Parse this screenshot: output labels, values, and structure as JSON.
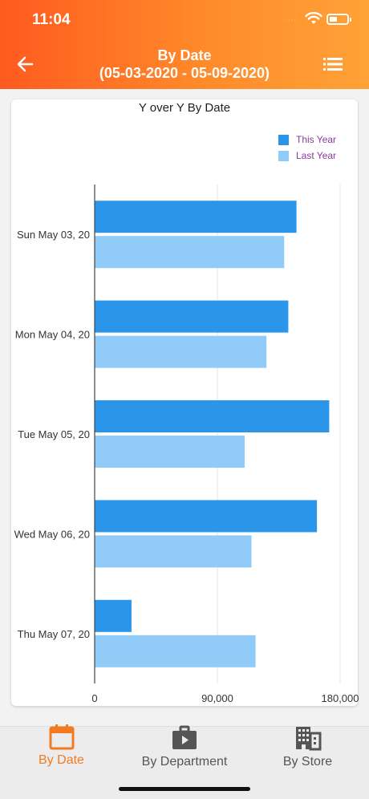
{
  "status_bar": {
    "time": "11:04",
    "signal": "····"
  },
  "header": {
    "title": "By Date",
    "date_range": "(05-03-2020 - 05-09-2020)",
    "back_icon": "arrow-left-icon",
    "menu_icon": "list-icon"
  },
  "chart_data": {
    "type": "bar",
    "orientation": "horizontal",
    "title": "Y over Y By Date",
    "categories": [
      "Sun May 03, 20",
      "Mon May 04, 20",
      "Tue May 05, 20",
      "Wed May 06, 20",
      "Thu May 07, 20"
    ],
    "series": [
      {
        "name": "This Year",
        "color": "#2b95e9",
        "values": [
          148000,
          142000,
          172000,
          163000,
          27000
        ]
      },
      {
        "name": "Last Year",
        "color": "#91cbf8",
        "values": [
          139000,
          126000,
          110000,
          115000,
          118000
        ]
      }
    ],
    "x_ticks": [
      "0",
      "90,000",
      "180,000"
    ],
    "xlim": [
      0,
      180000
    ],
    "grid": true,
    "legend_position": "top-right"
  },
  "tabs": [
    {
      "label": "By Date",
      "icon": "calendar-icon",
      "active": true
    },
    {
      "label": "By Department",
      "icon": "briefcase-icon",
      "active": false
    },
    {
      "label": "By Store",
      "icon": "building-icon",
      "active": false
    }
  ],
  "colors": {
    "accent": "#f47a20",
    "inactive": "#555555"
  }
}
